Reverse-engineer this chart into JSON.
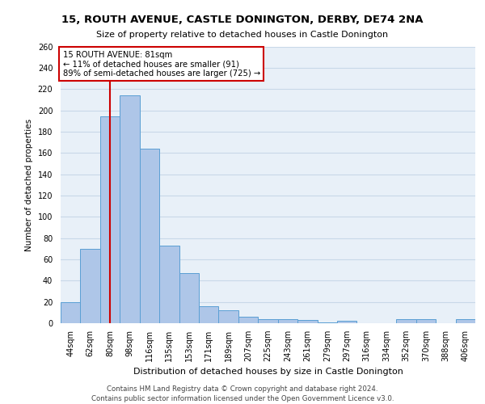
{
  "title1": "15, ROUTH AVENUE, CASTLE DONINGTON, DERBY, DE74 2NA",
  "title2": "Size of property relative to detached houses in Castle Donington",
  "xlabel": "Distribution of detached houses by size in Castle Donington",
  "ylabel": "Number of detached properties",
  "footer1": "Contains HM Land Registry data © Crown copyright and database right 2024.",
  "footer2": "Contains public sector information licensed under the Open Government Licence v3.0.",
  "annotation_title": "15 ROUTH AVENUE: 81sqm",
  "annotation_line1": "← 11% of detached houses are smaller (91)",
  "annotation_line2": "89% of semi-detached houses are larger (725) →",
  "bar_color": "#aec6e8",
  "bar_edge_color": "#5a9fd4",
  "vline_color": "#cc0000",
  "annotation_box_edge": "#cc0000",
  "annotation_box_face": "#ffffff",
  "grid_color": "#c8d8e8",
  "background_color": "#e8f0f8",
  "fig_background": "#ffffff",
  "categories": [
    "44sqm",
    "62sqm",
    "80sqm",
    "98sqm",
    "116sqm",
    "135sqm",
    "153sqm",
    "171sqm",
    "189sqm",
    "207sqm",
    "225sqm",
    "243sqm",
    "261sqm",
    "279sqm",
    "297sqm",
    "316sqm",
    "334sqm",
    "352sqm",
    "370sqm",
    "388sqm",
    "406sqm"
  ],
  "values": [
    20,
    70,
    194,
    214,
    164,
    73,
    47,
    16,
    12,
    6,
    4,
    4,
    3,
    1,
    2,
    0,
    0,
    4,
    4,
    0,
    4
  ],
  "vline_x": 2,
  "ylim": [
    0,
    260
  ],
  "yticks": [
    0,
    20,
    40,
    60,
    80,
    100,
    120,
    140,
    160,
    180,
    200,
    220,
    240,
    260
  ],
  "title1_fontsize": 9.5,
  "title2_fontsize": 8.0,
  "ylabel_fontsize": 7.5,
  "xlabel_fontsize": 8.0,
  "footer_fontsize": 6.2,
  "tick_fontsize": 7.0,
  "ann_fontsize": 7.2
}
